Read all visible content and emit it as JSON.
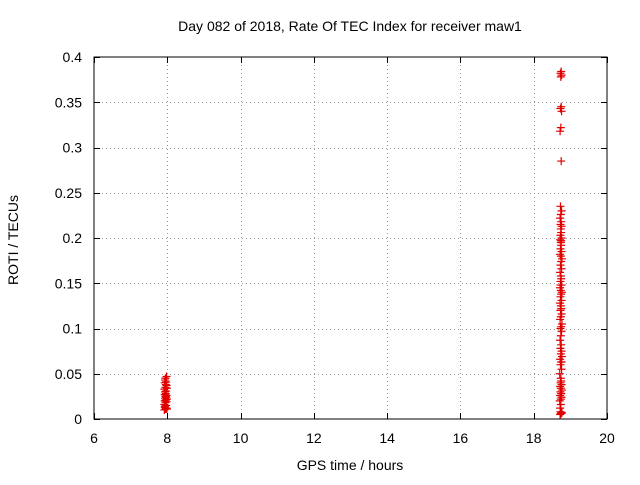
{
  "chart_data": {
    "type": "scatter",
    "title": "Day 082 of 2018, Rate Of TEC Index for receiver maw1",
    "xlabel": "GPS time / hours",
    "ylabel": "ROTI / TECUs",
    "xlim": [
      6,
      20
    ],
    "ylim": [
      0,
      0.4
    ],
    "xticks": [
      6,
      8,
      10,
      12,
      14,
      16,
      18,
      20
    ],
    "xtick_labels": [
      "6",
      "8",
      "10",
      "12",
      "14",
      "16",
      "18",
      "20"
    ],
    "yticks": [
      0,
      0.05,
      0.1,
      0.15,
      0.2,
      0.25,
      0.3,
      0.35,
      0.4
    ],
    "ytick_labels": [
      "0",
      "0.05",
      "0.1",
      "0.15",
      "0.2",
      "0.25",
      "0.3",
      "0.35",
      "0.4"
    ],
    "grid": true,
    "grid_style": "dotted",
    "marker": "plus",
    "marker_color": "#e00000",
    "series": [
      {
        "x": [
          7.92,
          7.95,
          7.98,
          7.93,
          7.96,
          7.99,
          7.94,
          7.97,
          7.92,
          7.95,
          7.98,
          7.93,
          7.96,
          7.99,
          7.94,
          7.97,
          7.95,
          7.98,
          7.93,
          7.96,
          7.94,
          7.97,
          7.92,
          7.99,
          7.95,
          7.98,
          7.96,
          7.93,
          7.97,
          7.94,
          7.95,
          7.98,
          18.72,
          18.74,
          18.76,
          18.73,
          18.75,
          18.77,
          18.71,
          18.74,
          18.76,
          18.72,
          18.75,
          18.73,
          18.77,
          18.74,
          18.72,
          18.76,
          18.73,
          18.75,
          18.74,
          18.71,
          18.76,
          18.73,
          18.75,
          18.72,
          18.77,
          18.74,
          18.76,
          18.73,
          18.75,
          18.72,
          18.74,
          18.76,
          18.73,
          18.75,
          18.77,
          18.72,
          18.74,
          18.76,
          18.73,
          18.75,
          18.74,
          18.72,
          18.76,
          18.73,
          18.75,
          18.77,
          18.74,
          18.72,
          18.76,
          18.73,
          18.75,
          18.74,
          18.72,
          18.76,
          18.73,
          18.75,
          18.77,
          18.74,
          18.72,
          18.76,
          18.73,
          18.75,
          18.74,
          18.72,
          18.76,
          18.73,
          18.75,
          18.74,
          18.76,
          18.73,
          18.75,
          18.72,
          18.74,
          18.76,
          18.73,
          18.75,
          18.72,
          18.74,
          18.76,
          18.73,
          18.75,
          18.74,
          18.76,
          18.73,
          18.75,
          18.72,
          18.74,
          18.76,
          18.73,
          18.75
        ],
        "y": [
          0.01,
          0.011,
          0.012,
          0.013,
          0.012,
          0.011,
          0.014,
          0.015,
          0.016,
          0.018,
          0.019,
          0.02,
          0.021,
          0.022,
          0.023,
          0.024,
          0.025,
          0.026,
          0.027,
          0.028,
          0.03,
          0.031,
          0.033,
          0.034,
          0.035,
          0.037,
          0.038,
          0.04,
          0.041,
          0.043,
          0.045,
          0.047,
          0.005,
          0.006,
          0.007,
          0.008,
          0.006,
          0.007,
          0.02,
          0.022,
          0.024,
          0.026,
          0.028,
          0.03,
          0.032,
          0.034,
          0.036,
          0.038,
          0.04,
          0.042,
          0.045,
          0.05,
          0.055,
          0.06,
          0.063,
          0.066,
          0.069,
          0.072,
          0.075,
          0.078,
          0.082,
          0.087,
          0.092,
          0.097,
          0.1,
          0.102,
          0.105,
          0.11,
          0.113,
          0.116,
          0.12,
          0.122,
          0.125,
          0.128,
          0.131,
          0.135,
          0.138,
          0.14,
          0.142,
          0.145,
          0.148,
          0.152,
          0.155,
          0.158,
          0.162,
          0.166,
          0.17,
          0.174,
          0.177,
          0.18,
          0.182,
          0.185,
          0.188,
          0.192,
          0.195,
          0.198,
          0.2,
          0.203,
          0.206,
          0.21,
          0.213,
          0.215,
          0.218,
          0.222,
          0.226,
          0.23,
          0.235,
          0.285,
          0.318,
          0.322,
          0.34,
          0.343,
          0.345,
          0.378,
          0.38,
          0.382,
          0.384,
          0.012,
          0.016,
          0.063,
          0.148,
          0.197
        ]
      }
    ]
  }
}
